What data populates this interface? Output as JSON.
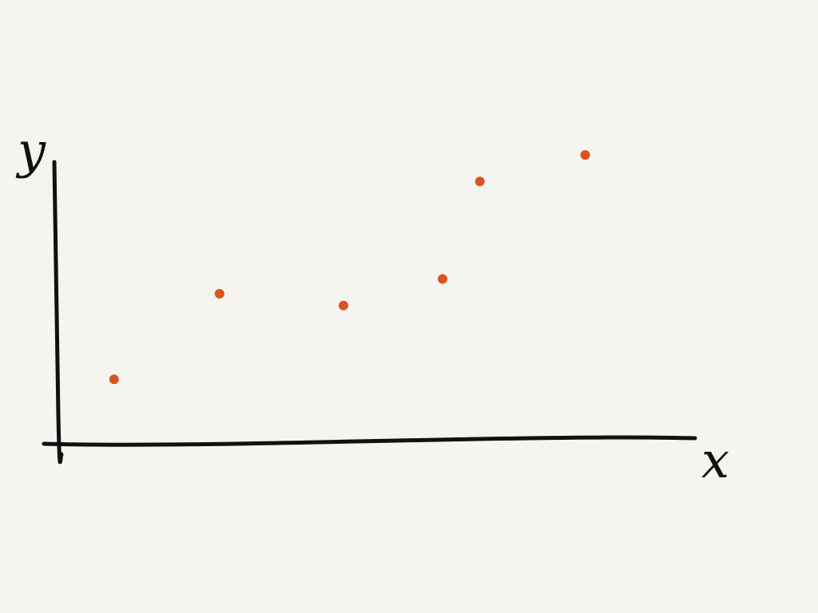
{
  "chart_data": {
    "type": "scatter",
    "title": "",
    "xlabel": "x",
    "ylabel": "y",
    "xlim": [
      0,
      10
    ],
    "ylim": [
      0,
      10
    ],
    "grid": false,
    "legend": "none",
    "series": [
      {
        "points": [
          {
            "x": 0.9,
            "y": 2.1
          },
          {
            "x": 2.6,
            "y": 5.0
          },
          {
            "x": 4.6,
            "y": 4.6
          },
          {
            "x": 6.2,
            "y": 5.5
          },
          {
            "x": 6.8,
            "y": 8.8
          },
          {
            "x": 8.5,
            "y": 9.7
          }
        ]
      }
    ]
  },
  "colors": {
    "background": "#f5f4f0",
    "axis": "#111111",
    "point": "#d9541e"
  }
}
